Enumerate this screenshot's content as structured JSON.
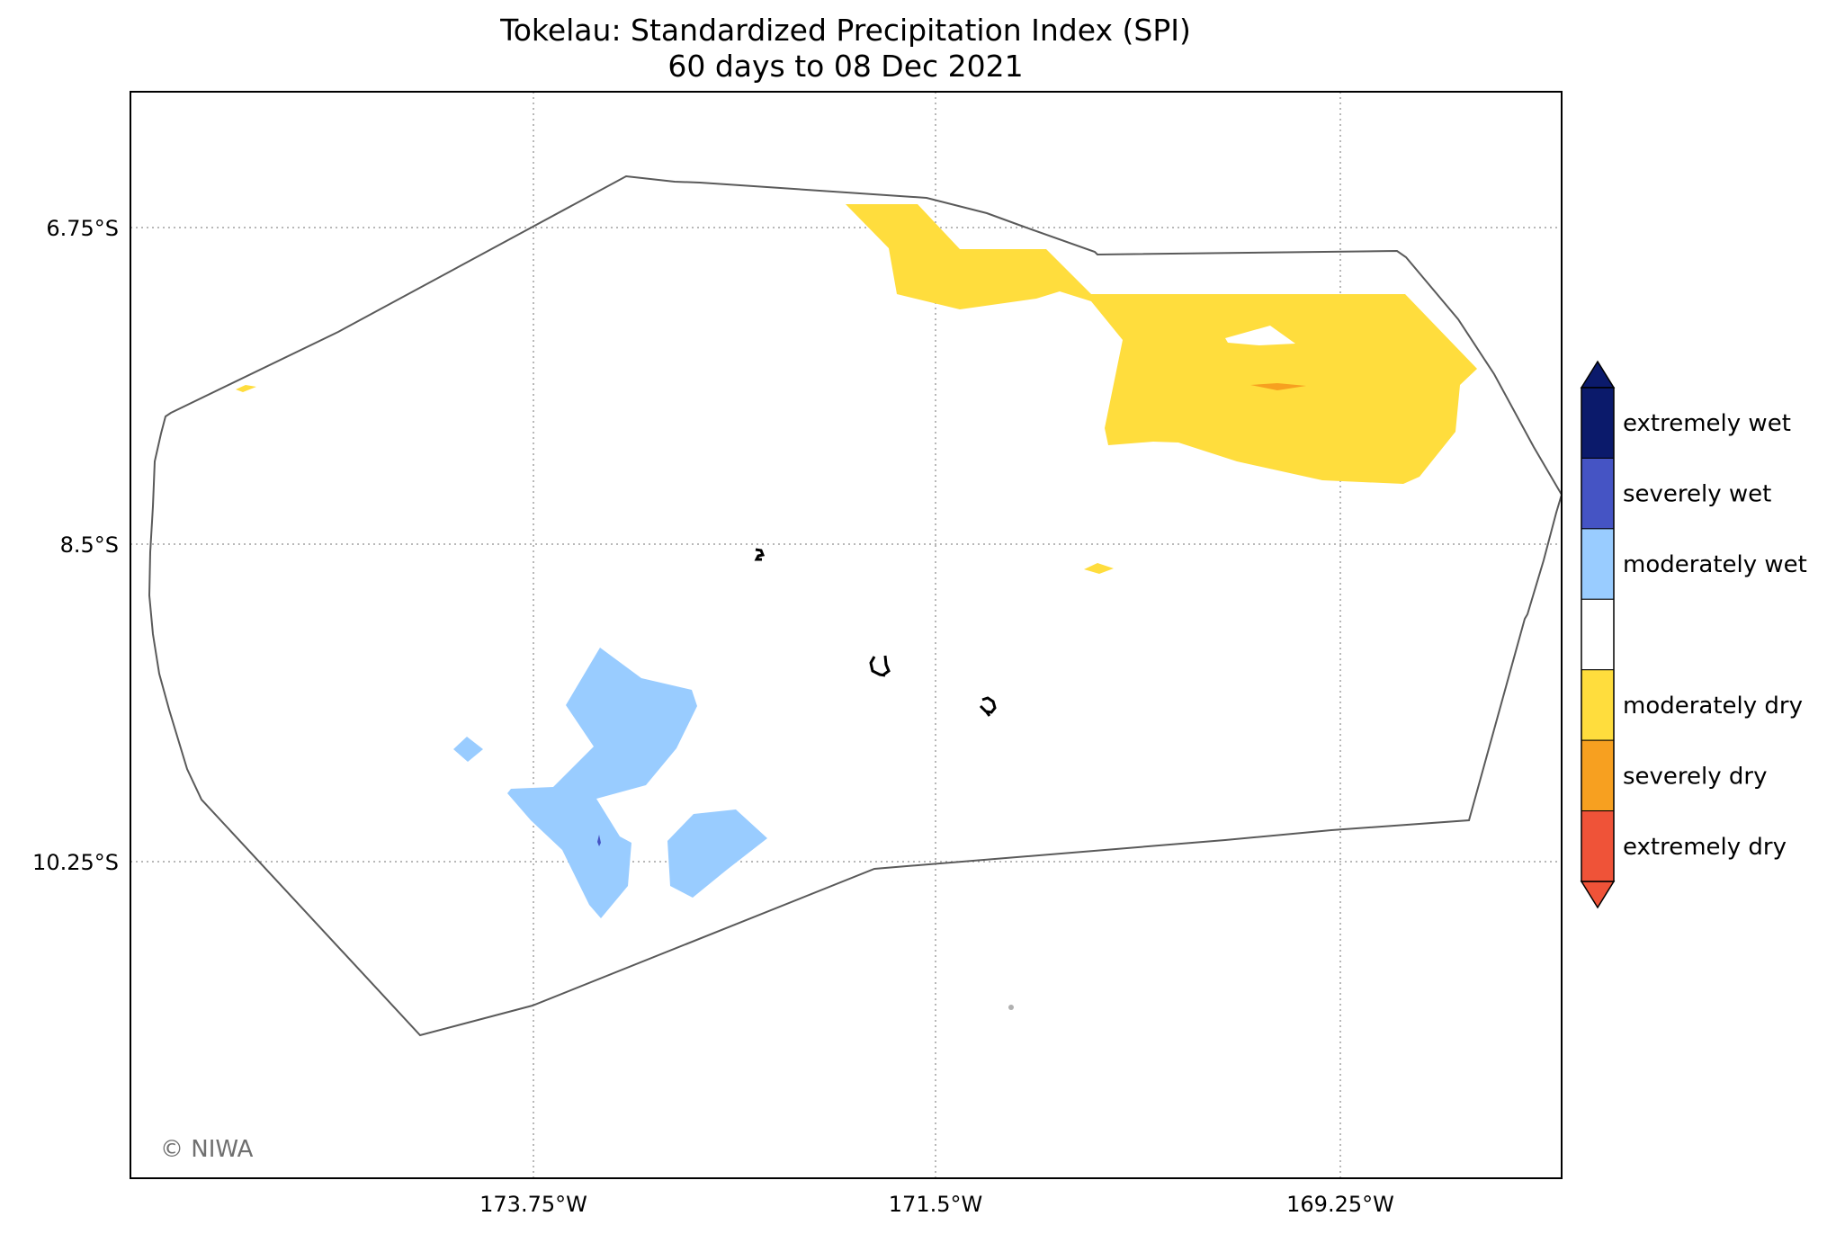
{
  "title": {
    "line1": "Tokelau: Standardized Precipitation Index (SPI)",
    "line2": "60 days to 08 Dec 2021"
  },
  "axes": {
    "x_ticks": [
      "173.75°W",
      "171.5°W",
      "169.25°W"
    ],
    "y_ticks": [
      "6.75°S",
      "8.5°S",
      "10.25°S"
    ]
  },
  "map": {
    "region": "Tokelau",
    "features": [
      "eez-boundary",
      "atolls",
      "dry-anomaly-areas",
      "wet-anomaly-areas"
    ]
  },
  "legend": {
    "classes": [
      {
        "label": "extremely wet",
        "color": "#0b1a6b"
      },
      {
        "label": "severely wet",
        "color": "#4554c4"
      },
      {
        "label": "moderately wet",
        "color": "#99ccff"
      },
      {
        "label": "",
        "color": "#ffffff"
      },
      {
        "label": "moderately dry",
        "color": "#ffdd3d"
      },
      {
        "label": "severely dry",
        "color": "#f7a020"
      },
      {
        "label": "extremely dry",
        "color": "#ef5338"
      }
    ]
  },
  "credit": "© NIWA",
  "colors": {
    "dry": "#ffdd3d",
    "severely_dry": "#f7a020",
    "wet": "#99ccff",
    "severely_wet": "#4554c4",
    "boundary": "#5a5a5a",
    "grid": "#a0a0a0"
  }
}
